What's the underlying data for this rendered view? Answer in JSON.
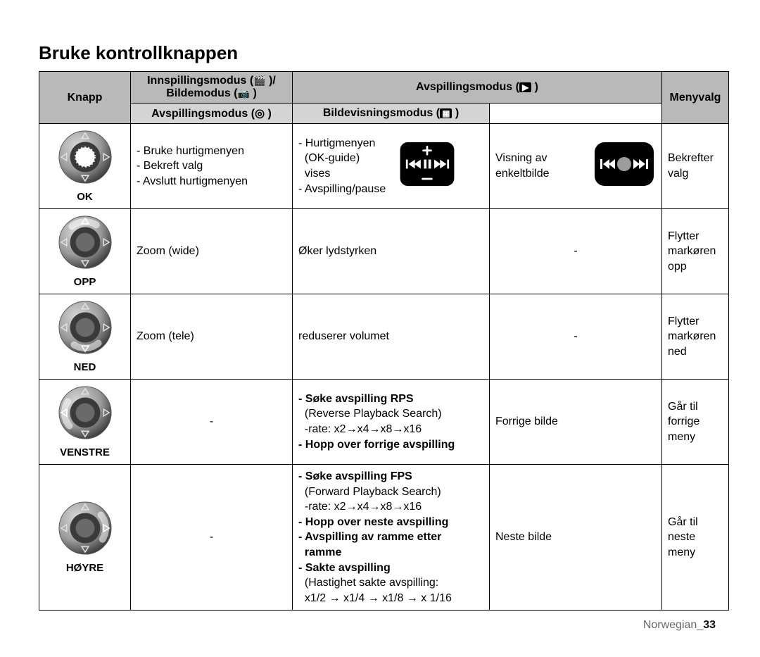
{
  "title": "Bruke kontrollknappen",
  "footer_lang": "Norwegian_",
  "footer_page": "33",
  "colors": {
    "header_bg": "#b9b9b9",
    "subheader_bg": "#d4d4d4",
    "border": "#000000",
    "text": "#000000",
    "footer_muted": "#7a7a7a",
    "dial_outer": "#9a9a9a",
    "dial_inner": "#6a6a6a",
    "dial_highlight": "#d9d9d9",
    "dial_shadow": "#3a3a3a",
    "dial_marker": "#e0e0e0",
    "black_pad": "#000000",
    "white_glyph": "#ffffff",
    "grey_glyph": "#9c9c9c"
  },
  "header": {
    "knapp": "Knapp",
    "innspilling_top": "Innspillingsmodus (",
    "innspilling_suffix": " )/",
    "bildemodus": "Bildemodus (",
    "bildemodus_suffix": " )",
    "avspilling_top": "Avspillingsmodus (",
    "avspilling_top_suffix": " )",
    "avspilling_sub": "Avspillingsmodus (",
    "avspilling_sub_suffix": " )",
    "bildevisning": "Bildevisningsmodus (",
    "bildevisning_suffix": " )",
    "menyvalg": "Menyvalg"
  },
  "icons": {
    "video": "🎬",
    "camera": "📷",
    "play_box": "▶",
    "disc": "◎",
    "photo_box": "🖼"
  },
  "rows": [
    {
      "key": "ok",
      "label": "OK",
      "highlight": "center",
      "innsp": [
        "- Bruke hurtigmenyen",
        "- Bekreft valg",
        "- Avslutt hurtigmenyen"
      ],
      "avsp": [
        "- Hurtigmenyen",
        "  (OK-guide)",
        "  vises",
        "- Avspilling/pause"
      ],
      "bilde_text": "Visning av enkeltbilde",
      "bilde_has_pad": true,
      "bilde_pad_kind": "playpad",
      "bilde_has_img2": true,
      "meny": "Bekrefter valg"
    },
    {
      "key": "opp",
      "label": "OPP",
      "highlight": "up",
      "innsp": [
        "Zoom (wide)"
      ],
      "avsp": [
        "Øker lydstyrken"
      ],
      "bilde_text": "-",
      "bilde_center": true,
      "meny": "Flytter markøren opp"
    },
    {
      "key": "ned",
      "label": "NED",
      "highlight": "down",
      "innsp": [
        "Zoom (tele)"
      ],
      "avsp": [
        "reduserer volumet"
      ],
      "bilde_text": "-",
      "bilde_center": true,
      "meny": "Flytter markøren ned"
    },
    {
      "key": "venstre",
      "label": "VENSTRE",
      "highlight": "left",
      "innsp_center": "-",
      "avsp_lines": [
        {
          "t": "- Søke avspilling RPS",
          "b": true
        },
        {
          "t": "  (Reverse Playback Search)"
        },
        {
          "t": "  -rate: x2→x4→x8→x16"
        },
        {
          "t": "- Hopp over forrige avspilling",
          "b": true
        }
      ],
      "bilde_text": "Forrige bilde",
      "meny": "Går til forrige meny"
    },
    {
      "key": "hoyre",
      "label": "HØYRE",
      "highlight": "right",
      "innsp_center": "-",
      "avsp_lines": [
        {
          "t": "- Søke avspilling FPS",
          "b": true
        },
        {
          "t": "  (Forward Playback Search)"
        },
        {
          "t": "  -rate: x2→x4→x8→x16"
        },
        {
          "t": "- Hopp over neste avspilling",
          "b": true
        },
        {
          "t": "- Avspilling av ramme etter",
          "b": true
        },
        {
          "t": "  ramme",
          "b": true
        },
        {
          "t": "- Sakte avspilling",
          "b": true
        },
        {
          "t": "  (Hastighet sakte avspilling:"
        },
        {
          "t": "  x1/2 → x1/4 → x1/8 → x 1/16"
        }
      ],
      "bilde_text": "Neste bilde",
      "meny": "Går til neste meny"
    }
  ]
}
